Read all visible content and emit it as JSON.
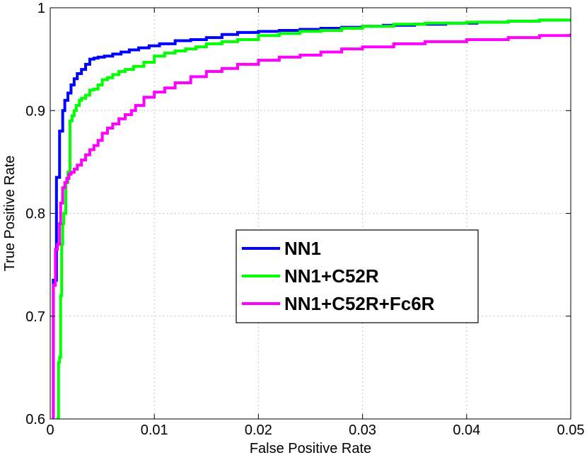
{
  "chart_data": {
    "type": "line",
    "title": "",
    "xlabel": "False Positive Rate",
    "ylabel": "True Positive Rate",
    "xlim": [
      0,
      0.05
    ],
    "ylim": [
      0.6,
      1.0
    ],
    "xticks": [
      0,
      0.01,
      0.02,
      0.03,
      0.04,
      0.05
    ],
    "xtick_labels": [
      "0",
      "0.01",
      "0.02",
      "0.03",
      "0.04",
      "0.05"
    ],
    "yticks": [
      0.6,
      0.7,
      0.8,
      0.9,
      1.0
    ],
    "ytick_labels": [
      "0.6",
      "0.7",
      "0.8",
      "0.9",
      "1"
    ],
    "grid": true,
    "legend_position": "center",
    "series": [
      {
        "name": "NN1",
        "color": "#0000ff",
        "x": [
          0.0003,
          0.0003,
          0.0006,
          0.0006,
          0.0009,
          0.0009,
          0.0012,
          0.0014,
          0.0017,
          0.002,
          0.0023,
          0.0026,
          0.003,
          0.0034,
          0.0038,
          0.0042,
          0.0046,
          0.0052,
          0.006,
          0.0068,
          0.0076,
          0.0085,
          0.0095,
          0.0105,
          0.012,
          0.0135,
          0.015,
          0.0165,
          0.018,
          0.02,
          0.022,
          0.024,
          0.026,
          0.028,
          0.03,
          0.032,
          0.035,
          0.038,
          0.041,
          0.044,
          0.047,
          0.05
        ],
        "y": [
          0.6,
          0.735,
          0.765,
          0.835,
          0.84,
          0.88,
          0.9,
          0.91,
          0.917,
          0.925,
          0.931,
          0.936,
          0.94,
          0.945,
          0.95,
          0.951,
          0.952,
          0.953,
          0.955,
          0.957,
          0.959,
          0.961,
          0.963,
          0.965,
          0.968,
          0.969,
          0.971,
          0.974,
          0.976,
          0.977,
          0.978,
          0.979,
          0.98,
          0.981,
          0.982,
          0.983,
          0.984,
          0.985,
          0.986,
          0.987,
          0.988,
          0.989
        ]
      },
      {
        "name": "NN1+C52R",
        "color": "#00ff00",
        "x": [
          0.0006,
          0.0007,
          0.0008,
          0.0009,
          0.001,
          0.0011,
          0.0012,
          0.0013,
          0.0015,
          0.0017,
          0.0019,
          0.0021,
          0.0023,
          0.0025,
          0.0028,
          0.003,
          0.0034,
          0.0038,
          0.0042,
          0.0046,
          0.005,
          0.0055,
          0.006,
          0.0066,
          0.0072,
          0.008,
          0.009,
          0.01,
          0.011,
          0.012,
          0.013,
          0.014,
          0.015,
          0.0165,
          0.018,
          0.02,
          0.022,
          0.024,
          0.026,
          0.028,
          0.03,
          0.033,
          0.036,
          0.04,
          0.044,
          0.047,
          0.05
        ],
        "y": [
          0.6,
          0.6,
          0.655,
          0.66,
          0.72,
          0.77,
          0.79,
          0.8,
          0.83,
          0.84,
          0.89,
          0.895,
          0.9,
          0.905,
          0.91,
          0.912,
          0.915,
          0.92,
          0.921,
          0.925,
          0.93,
          0.932,
          0.935,
          0.938,
          0.94,
          0.943,
          0.947,
          0.953,
          0.956,
          0.958,
          0.96,
          0.962,
          0.965,
          0.967,
          0.969,
          0.973,
          0.975,
          0.977,
          0.978,
          0.98,
          0.982,
          0.984,
          0.985,
          0.986,
          0.987,
          0.988,
          0.988
        ]
      },
      {
        "name": "NN1+C52R+Fc6R",
        "color": "#ff00ff",
        "x": [
          0.0003,
          0.0003,
          0.0005,
          0.0007,
          0.0009,
          0.001,
          0.0012,
          0.0014,
          0.0016,
          0.0018,
          0.002,
          0.0023,
          0.0026,
          0.003,
          0.0034,
          0.0038,
          0.0042,
          0.0046,
          0.005,
          0.0055,
          0.006,
          0.0066,
          0.0072,
          0.0078,
          0.0082,
          0.009,
          0.01,
          0.011,
          0.012,
          0.0135,
          0.015,
          0.0165,
          0.018,
          0.02,
          0.022,
          0.024,
          0.026,
          0.028,
          0.03,
          0.033,
          0.036,
          0.04,
          0.044,
          0.047,
          0.05
        ],
        "y": [
          0.6,
          0.73,
          0.765,
          0.77,
          0.79,
          0.81,
          0.825,
          0.83,
          0.834,
          0.838,
          0.84,
          0.843,
          0.847,
          0.852,
          0.857,
          0.862,
          0.866,
          0.871,
          0.878,
          0.883,
          0.887,
          0.892,
          0.896,
          0.9,
          0.905,
          0.913,
          0.918,
          0.922,
          0.927,
          0.933,
          0.938,
          0.941,
          0.945,
          0.949,
          0.952,
          0.954,
          0.957,
          0.96,
          0.962,
          0.965,
          0.967,
          0.969,
          0.971,
          0.973,
          0.975
        ]
      }
    ]
  }
}
